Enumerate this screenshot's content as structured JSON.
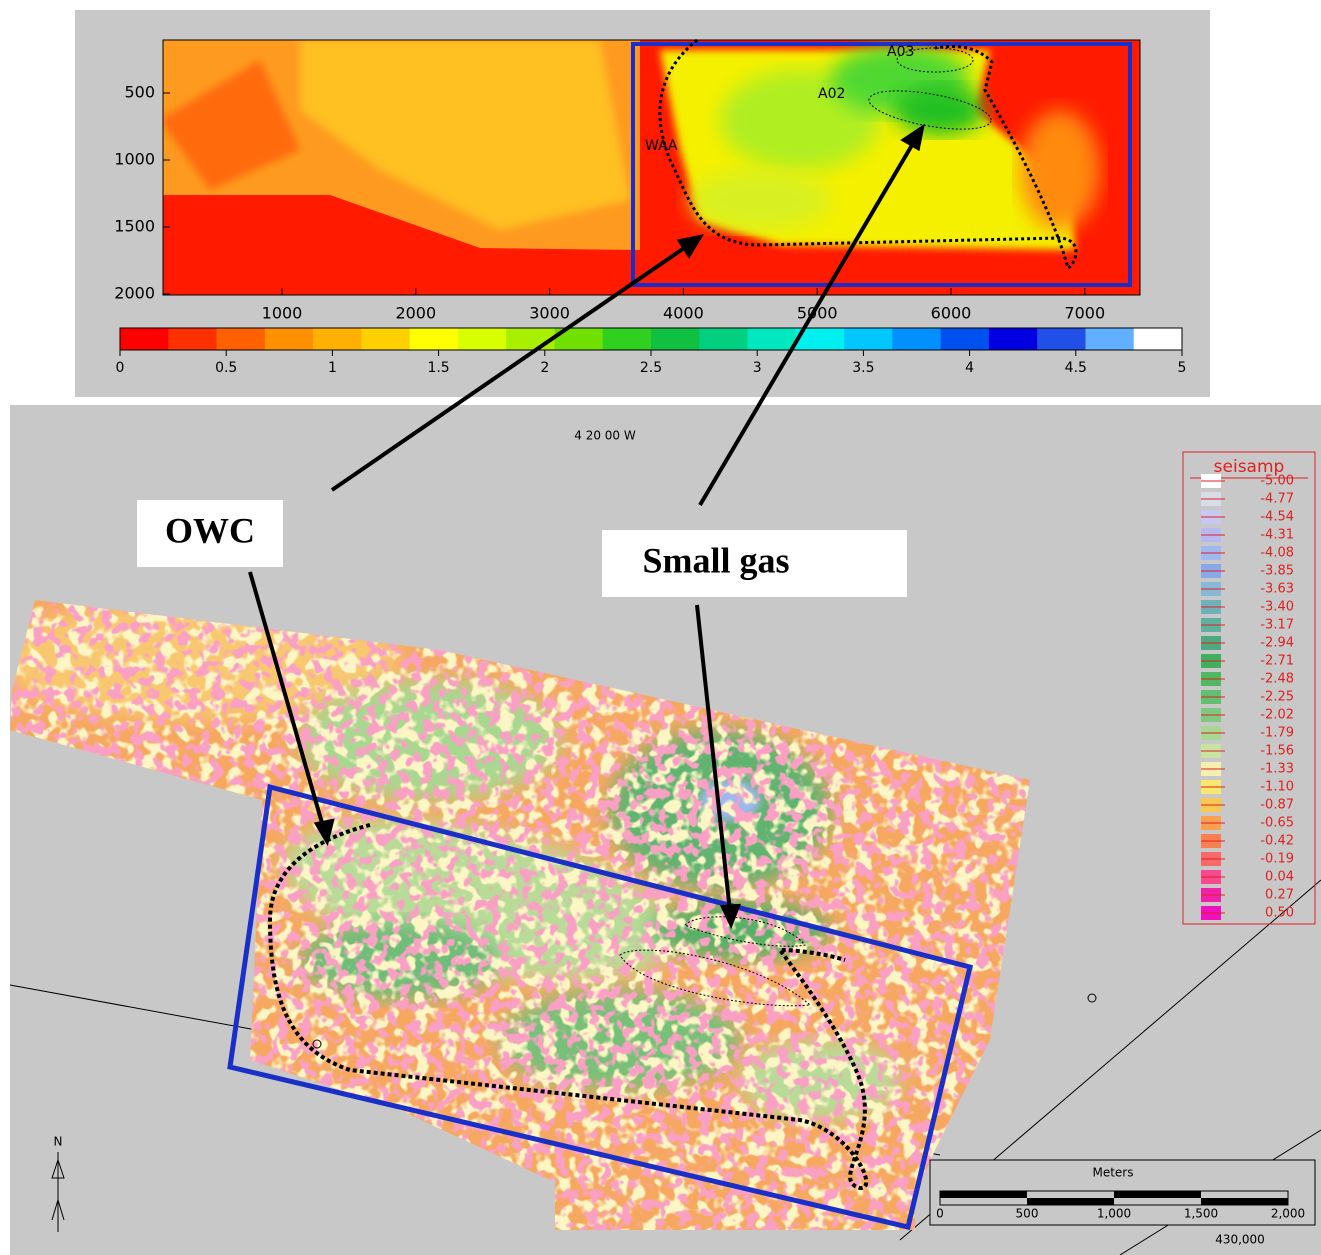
{
  "top_map": {
    "y_tick_labels": [
      500,
      1000,
      1500,
      2000
    ],
    "x_tick_labels": [
      1000,
      2000,
      3000,
      4000,
      5000,
      6000,
      7000
    ],
    "colorbar": {
      "labels": [
        0,
        0.5,
        1,
        1.5,
        2,
        2.5,
        3,
        3.5,
        4,
        4.5,
        5
      ],
      "colors": [
        "#ff0000",
        "#ff3000",
        "#ff6000",
        "#ff9000",
        "#ffb000",
        "#ffd000",
        "#ffff00",
        "#d8ff00",
        "#a8f000",
        "#70e000",
        "#30d020",
        "#10c040",
        "#00d080",
        "#00e8c0",
        "#00f0f0",
        "#00c8ff",
        "#0090ff",
        "#0050f0",
        "#0000e0",
        "#2050e8",
        "#60b0ff",
        "#ffffff"
      ]
    },
    "well_labels": [
      "A03",
      "A02",
      "WAA"
    ]
  },
  "bottom_map": {
    "longitude_label": "4 20 00 W",
    "legend": {
      "title": "seisamp",
      "entries": [
        "-5.00",
        "-4.77",
        "-4.54",
        "-4.31",
        "-4.08",
        "-3.85",
        "-3.63",
        "-3.40",
        "-3.17",
        "-2.94",
        "-2.71",
        "-2.48",
        "-2.25",
        "-2.02",
        "-1.79",
        "-1.56",
        "-1.33",
        "-1.10",
        "-0.87",
        "-0.65",
        "-0.42",
        "-0.19",
        "0.04",
        "0.27",
        "0.50"
      ],
      "colors": [
        "#ffffff",
        "#d8dce8",
        "#c8c8f0",
        "#b8b8f0",
        "#a0b8f0",
        "#88a8e8",
        "#88b8d8",
        "#70b0b8",
        "#60b0a0",
        "#50a880",
        "#40b060",
        "#50b860",
        "#60c070",
        "#80c880",
        "#a8d890",
        "#c8e4a0",
        "#f4f0b0",
        "#f8e870",
        "#f8c850",
        "#f8a050",
        "#f88050",
        "#f86868",
        "#f84890",
        "#f020a8",
        "#f010c0"
      ]
    },
    "scale_bar": {
      "title": "Meters",
      "labels": [
        "0",
        "500",
        "1,000",
        "1,500",
        "2,000"
      ]
    },
    "easting_label": "430,000",
    "north_label": "N"
  },
  "callouts": [
    "OWC",
    "Small gas"
  ]
}
